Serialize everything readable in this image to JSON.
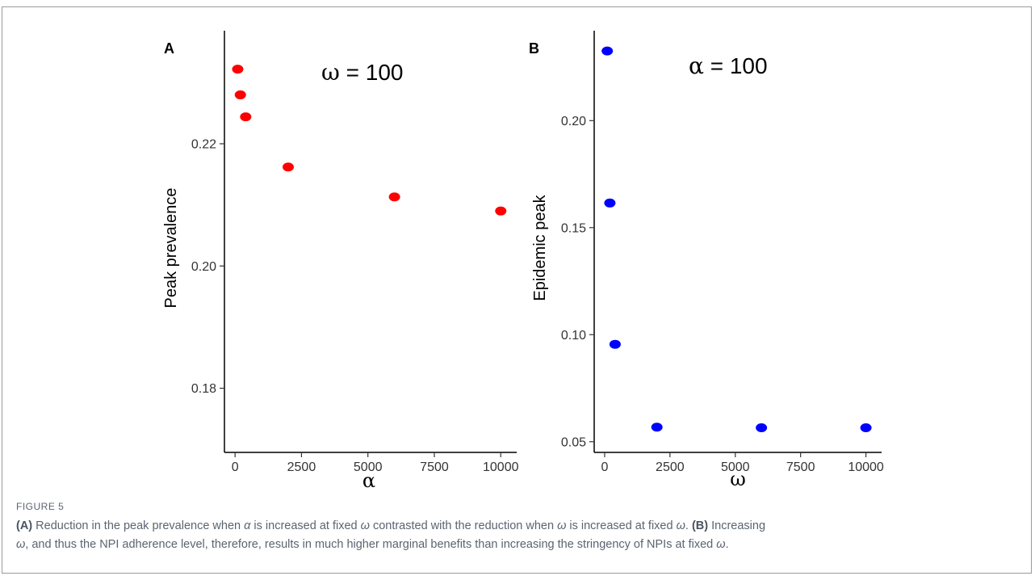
{
  "chart_data": [
    {
      "type": "scatter",
      "panel_label": "A",
      "annotation": {
        "symbol": "ω",
        "text": " = 100"
      },
      "xlabel": "α",
      "ylabel": "Peak prevalence",
      "xlim": [
        -400,
        10600
      ],
      "ylim": [
        0.1695,
        0.2385
      ],
      "xticks": [
        0,
        2500,
        5000,
        7500,
        10000
      ],
      "xtick_labels": [
        "0",
        "2500",
        "5000",
        "7500",
        "10000"
      ],
      "yticks": [
        0.18,
        0.2,
        0.22
      ],
      "ytick_labels": [
        "0.18",
        "0.20",
        "0.22"
      ],
      "color": "#ff0000",
      "grid": false,
      "x": [
        100,
        200,
        400,
        2000,
        6000,
        10000
      ],
      "y": [
        0.2322,
        0.228,
        0.2244,
        0.2162,
        0.2113,
        0.209
      ]
    },
    {
      "type": "scatter",
      "panel_label": "B",
      "annotation": {
        "symbol": "α",
        "text": " = 100"
      },
      "xlabel": "ω",
      "ylabel": "Epidemic peak",
      "xlim": [
        -400,
        10600
      ],
      "ylim": [
        0.045,
        0.242
      ],
      "xticks": [
        0,
        2500,
        5000,
        7500,
        10000
      ],
      "xtick_labels": [
        "0",
        "2500",
        "5000",
        "7500",
        "10000"
      ],
      "yticks": [
        0.05,
        0.1,
        0.15,
        0.2
      ],
      "ytick_labels": [
        "0.05",
        "0.10",
        "0.15",
        "0.20"
      ],
      "color": "#0000ff",
      "grid": false,
      "x": [
        100,
        200,
        400,
        2000,
        6000,
        10000
      ],
      "y": [
        0.2325,
        0.1615,
        0.0955,
        0.0568,
        0.0565,
        0.0565
      ]
    }
  ],
  "caption": {
    "label": "FIGURE 5",
    "part_a_label": "(A)",
    "part_a_text_1": " Reduction in the peak prevalence when ",
    "part_a_sym_1": "α",
    "part_a_text_2": " is increased at fixed ",
    "part_a_sym_2": "ω",
    "part_a_text_3": " contrasted with the reduction when ",
    "part_a_sym_3": "ω",
    "part_a_text_4": " is increased at fixed ",
    "part_a_sym_4": "ω",
    "part_a_text_5": ". ",
    "part_b_label": "(B)",
    "part_b_text_1": " Increasing ",
    "part_b_sym_1": "ω",
    "part_b_text_2": ", and thus the NPI adherence level, therefore, results in much higher marginal benefits than increasing the stringency of NPIs at fixed ",
    "part_b_sym_2": "ω",
    "part_b_text_3": "."
  }
}
